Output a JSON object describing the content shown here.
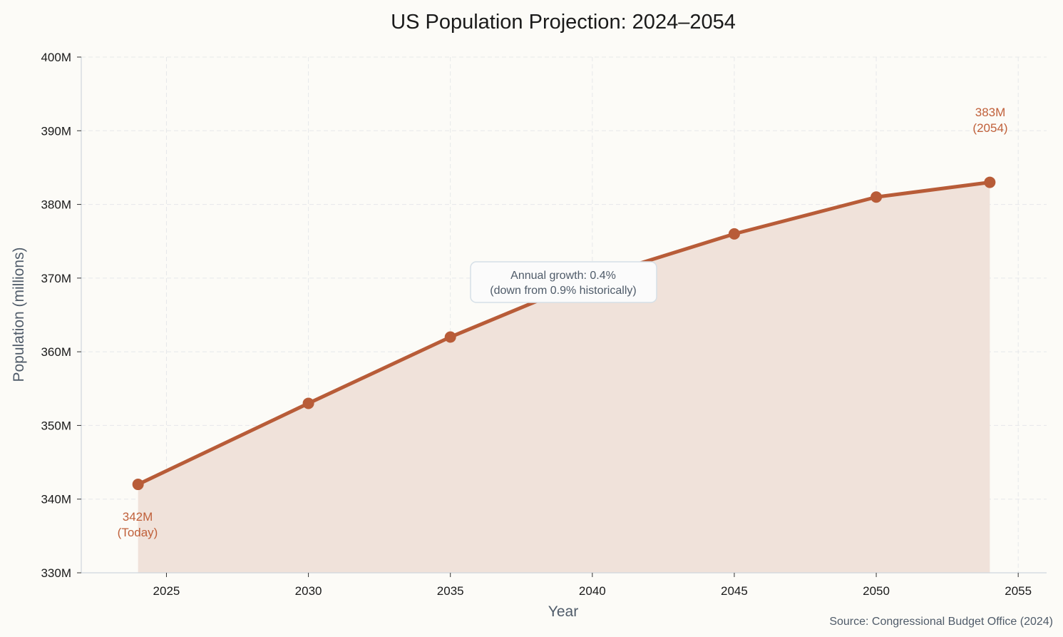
{
  "chart_data": {
    "type": "line",
    "title": "US Population Projection: 2024–2054",
    "xlabel": "Year",
    "ylabel": "Population (millions)",
    "x": [
      2024,
      2030,
      2035,
      2040,
      2045,
      2050,
      2054
    ],
    "series": [
      {
        "values": [
          342,
          353,
          362,
          370,
          376,
          381,
          383
        ]
      }
    ],
    "xlim": [
      2022,
      2056
    ],
    "ylim": [
      330,
      400
    ],
    "xticks": [
      2025,
      2030,
      2035,
      2040,
      2045,
      2050,
      2055
    ],
    "xtick_labels": [
      "2025",
      "2030",
      "2035",
      "2040",
      "2045",
      "2050",
      "2055"
    ],
    "yticks": [
      330,
      340,
      350,
      360,
      370,
      380,
      390,
      400
    ],
    "ytick_labels": [
      "330M",
      "340M",
      "350M",
      "360M",
      "370M",
      "380M",
      "390M",
      "400M"
    ],
    "grid": true,
    "area_fill": true,
    "annotations": {
      "start": {
        "line1": "342M",
        "line2": "(Today)"
      },
      "end": {
        "line1": "383M",
        "line2": "(2054)"
      },
      "growth": {
        "line1": "Annual growth: 0.4%",
        "line2": "(down from 0.9% historically)"
      }
    },
    "source": "Source: Congressional Budget Office (2024)",
    "colors": {
      "line": "#b85c38",
      "fill": "#f0e2da",
      "annotation": "#c0603a",
      "text_muted": "#4f5b69"
    }
  }
}
